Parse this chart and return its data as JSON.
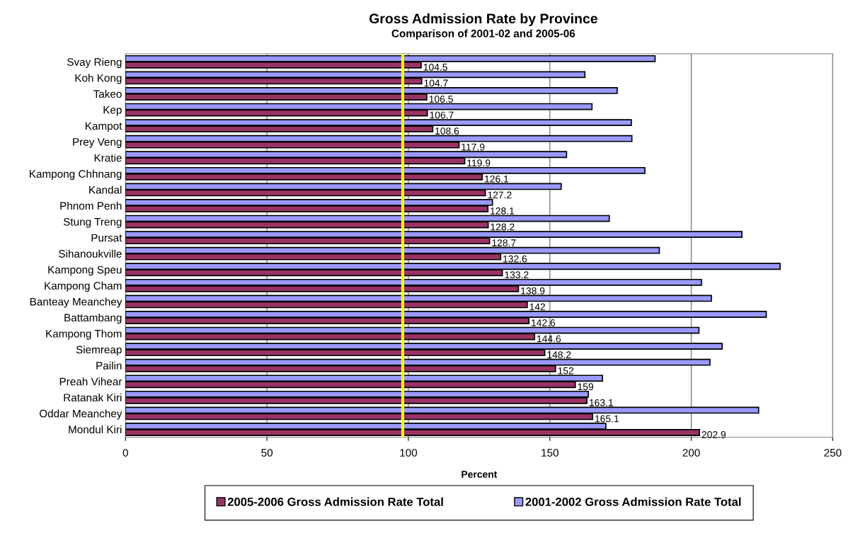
{
  "chart_data": {
    "type": "bar",
    "orientation": "horizontal",
    "title": "Gross Admission Rate by Province",
    "subtitle": "Comparison of 2001-02 and 2005-06",
    "xlabel": "Percent",
    "categories": [
      "Svay Rieng",
      "Koh Kong",
      "Takeo",
      "Kep",
      "Kampot",
      "Prey Veng",
      "Kratie",
      "Kampong Chhnang",
      "Kandal",
      "Phnom Penh",
      "Stung Treng",
      "Pursat",
      "Sihanoukville",
      "Kampong Speu",
      "Kampong Cham",
      "Banteay Meanchey",
      "Battambang",
      "Kampong Thom",
      "Siemreap",
      "Pailin",
      "Preah Vihear",
      "Ratanak Kiri",
      "Oddar Meanchey",
      "Mondul Kiri"
    ],
    "series": [
      {
        "name": "2005-2006 Gross Admission Rate Total",
        "color": "#993366",
        "values": [
          104.5,
          104.7,
          106.5,
          106.7,
          108.6,
          117.9,
          119.9,
          126.1,
          127.2,
          128.1,
          128.2,
          128.7,
          132.6,
          133.2,
          138.9,
          142,
          142.6,
          144.6,
          148.2,
          152,
          159,
          163.1,
          165.1,
          202.9
        ],
        "value_labels": [
          "104.5",
          "104.7",
          "106.5",
          "106.7",
          "108.6",
          "117.9",
          "119.9",
          "126.1",
          "127.2",
          "128.1",
          "128.2",
          "128.7",
          "132.6",
          "133.2",
          "138.9",
          "142",
          "142.6",
          "144.6",
          "148.2",
          "152",
          "159",
          "163.1",
          "165.1",
          "202.9"
        ]
      },
      {
        "name": "2001-2002 Gross Admission Rate Total",
        "color": "#9999ff",
        "values": [
          187.2,
          162.4,
          173.8,
          164.9,
          178.8,
          179.0,
          155.9,
          183.6,
          154.0,
          129.7,
          171.0,
          217.9,
          188.7,
          231.4,
          203.6,
          207.1,
          226.5,
          202.7,
          210.9,
          206.6,
          168.6,
          163.6,
          223.8,
          169.8
        ]
      }
    ],
    "xlim": [
      0,
      250
    ],
    "xticks": [
      0,
      50,
      100,
      150,
      200,
      250
    ],
    "ref_lines": [
      {
        "axis": "x",
        "value": 98,
        "color": "#ffff00"
      }
    ],
    "grid": "x",
    "legend": "bottom"
  }
}
